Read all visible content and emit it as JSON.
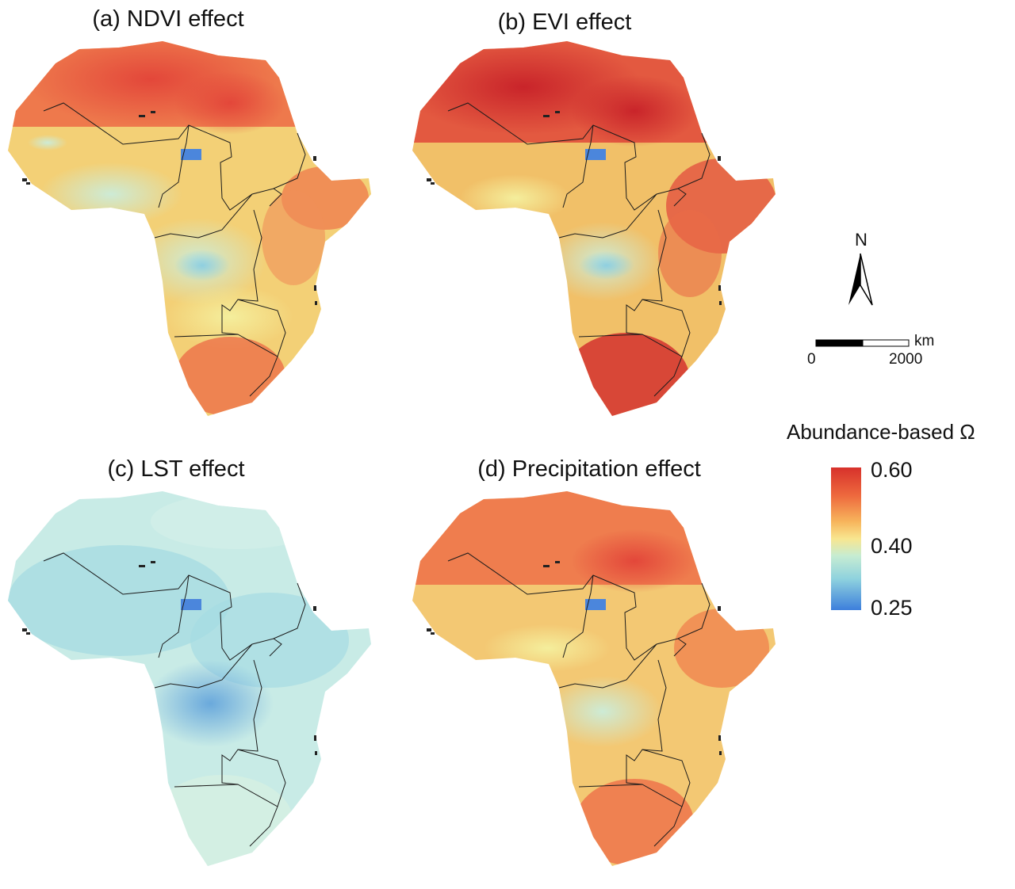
{
  "panels": [
    {
      "id": "a",
      "title": "(a) NDVI effect",
      "palette": "warm"
    },
    {
      "id": "b",
      "title": "(b) EVI effect",
      "palette": "hot"
    },
    {
      "id": "c",
      "title": "(c) LST effect",
      "palette": "cool"
    },
    {
      "id": "d",
      "title": "(d) Precipitation effect",
      "palette": "warm"
    }
  ],
  "north_arrow": {
    "label": "N"
  },
  "scale_bar": {
    "unit": "km",
    "start": "0",
    "end": "2000"
  },
  "legend": {
    "title": "Abundance-based Ω",
    "max_label": "0.60",
    "mid_label": "0.40",
    "min_label": "0.25",
    "colors": [
      "#d7312b",
      "#ee6a3e",
      "#f7b55c",
      "#f8e690",
      "#c6ecd2",
      "#8fd2de",
      "#3d7fdc"
    ]
  },
  "colors": {
    "hot": "#de3a30",
    "warm": "#ee6a42",
    "mid": "#f8d97a",
    "pale": "#f3f0a8",
    "cool": "#bfe7e6",
    "blue": "#3d7fdc"
  }
}
